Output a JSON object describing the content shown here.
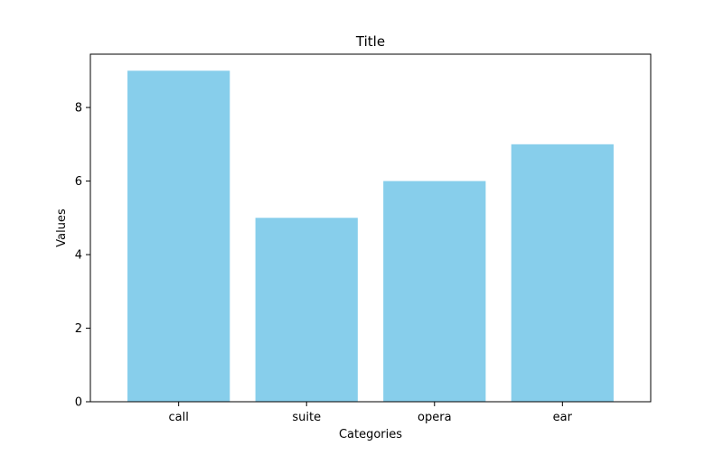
{
  "chart_data": {
    "type": "bar",
    "title": "Title",
    "xlabel": "Categories",
    "ylabel": "Values",
    "categories": [
      "call",
      "suite",
      "opera",
      "ear"
    ],
    "values": [
      9,
      5,
      6,
      7
    ],
    "ylim": [
      0,
      9.45
    ],
    "yticks": [
      0,
      2,
      4,
      6,
      8
    ],
    "grid": false,
    "bar_color": "#87ceeb"
  }
}
